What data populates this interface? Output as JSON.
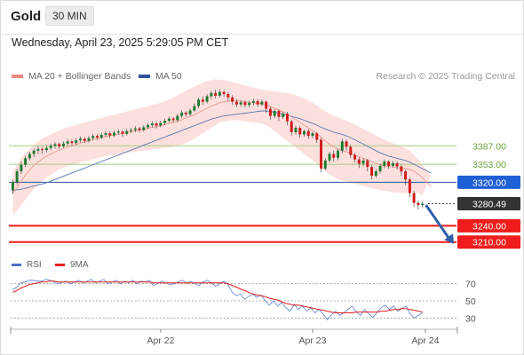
{
  "header": {
    "instrument": "Gold",
    "timeframe": "30 MIN",
    "datetime": "Wednesday, April 23, 2025 5:29:05 PM CET"
  },
  "legend": {
    "ma_bb_label": "MA 20 + Bollinger Bands",
    "ma_bb_color": "#f08a80",
    "ma50_label": "MA 50",
    "ma50_color": "#2f5597",
    "credit": "Research © 2025 Trading Central"
  },
  "rsi_legend": {
    "rsi_label": "RSI",
    "rsi_color": "#4a72c8",
    "ma9_label": "9MA",
    "ma9_color": "#e02020"
  },
  "chart_data": [
    {
      "type": "candlestick",
      "price_range": [
        3190,
        3500
      ],
      "x_ticks": [
        "Apr 22",
        "Apr 23",
        "Apr 24"
      ],
      "candles": [
        [
          3305,
          3320,
          3298,
          3325
        ],
        [
          3320,
          3340,
          3315,
          3345
        ],
        [
          3340,
          3352,
          3335,
          3358
        ],
        [
          3352,
          3364,
          3348,
          3368
        ],
        [
          3364,
          3372,
          3360,
          3376
        ],
        [
          3372,
          3378,
          3366,
          3382
        ],
        [
          3378,
          3381,
          3372,
          3386
        ],
        [
          3381,
          3379,
          3372,
          3385
        ],
        [
          3379,
          3383,
          3375,
          3388
        ],
        [
          3383,
          3387,
          3379,
          3391
        ],
        [
          3387,
          3390,
          3382,
          3394
        ],
        [
          3390,
          3386,
          3381,
          3393
        ],
        [
          3386,
          3391,
          3383,
          3395
        ],
        [
          3391,
          3395,
          3387,
          3399
        ],
        [
          3395,
          3392,
          3387,
          3398
        ],
        [
          3392,
          3397,
          3389,
          3401
        ],
        [
          3397,
          3400,
          3393,
          3404
        ],
        [
          3400,
          3396,
          3392,
          3403
        ],
        [
          3396,
          3401,
          3393,
          3405
        ],
        [
          3401,
          3405,
          3397,
          3409
        ],
        [
          3405,
          3402,
          3398,
          3408
        ],
        [
          3402,
          3407,
          3399,
          3411
        ],
        [
          3407,
          3410,
          3403,
          3414
        ],
        [
          3410,
          3406,
          3401,
          3413
        ],
        [
          3406,
          3411,
          3403,
          3415
        ],
        [
          3411,
          3413,
          3407,
          3417
        ],
        [
          3413,
          3409,
          3404,
          3416
        ],
        [
          3409,
          3414,
          3406,
          3418
        ],
        [
          3414,
          3416,
          3410,
          3420
        ],
        [
          3416,
          3419,
          3412,
          3423
        ],
        [
          3419,
          3416,
          3411,
          3422
        ],
        [
          3416,
          3421,
          3413,
          3425
        ],
        [
          3421,
          3425,
          3418,
          3429
        ],
        [
          3425,
          3428,
          3421,
          3432
        ],
        [
          3428,
          3424,
          3419,
          3431
        ],
        [
          3424,
          3429,
          3421,
          3433
        ],
        [
          3429,
          3433,
          3425,
          3437
        ],
        [
          3433,
          3437,
          3429,
          3441
        ],
        [
          3437,
          3434,
          3429,
          3440
        ],
        [
          3434,
          3442,
          3431,
          3446
        ],
        [
          3442,
          3448,
          3438,
          3452
        ],
        [
          3448,
          3445,
          3440,
          3451
        ],
        [
          3445,
          3452,
          3442,
          3456
        ],
        [
          3452,
          3460,
          3449,
          3465
        ],
        [
          3460,
          3472,
          3456,
          3476
        ],
        [
          3472,
          3468,
          3462,
          3478
        ],
        [
          3468,
          3478,
          3465,
          3482
        ],
        [
          3478,
          3484,
          3473,
          3488
        ],
        [
          3484,
          3479,
          3474,
          3490
        ],
        [
          3479,
          3486,
          3476,
          3491
        ],
        [
          3486,
          3482,
          3477,
          3489
        ],
        [
          3482,
          3476,
          3470,
          3486
        ],
        [
          3476,
          3468,
          3462,
          3480
        ],
        [
          3468,
          3463,
          3458,
          3473
        ],
        [
          3463,
          3467,
          3459,
          3471
        ],
        [
          3467,
          3462,
          3457,
          3471
        ],
        [
          3462,
          3466,
          3458,
          3470
        ],
        [
          3466,
          3469,
          3461,
          3473
        ],
        [
          3469,
          3463,
          3459,
          3473
        ],
        [
          3463,
          3468,
          3460,
          3472
        ],
        [
          3468,
          3455,
          3448,
          3471
        ],
        [
          3455,
          3442,
          3435,
          3459
        ],
        [
          3442,
          3451,
          3438,
          3455
        ],
        [
          3451,
          3440,
          3432,
          3454
        ],
        [
          3440,
          3446,
          3436,
          3450
        ],
        [
          3446,
          3432,
          3425,
          3449
        ],
        [
          3432,
          3412,
          3405,
          3435
        ],
        [
          3412,
          3420,
          3407,
          3424
        ],
        [
          3420,
          3408,
          3402,
          3423
        ],
        [
          3408,
          3414,
          3404,
          3417
        ],
        [
          3414,
          3405,
          3400,
          3418
        ],
        [
          3405,
          3410,
          3401,
          3413
        ],
        [
          3410,
          3398,
          3392,
          3412
        ],
        [
          3398,
          3345,
          3338,
          3402
        ],
        [
          3345,
          3360,
          3342,
          3364
        ],
        [
          3360,
          3372,
          3356,
          3376
        ],
        [
          3372,
          3365,
          3358,
          3378
        ],
        [
          3365,
          3378,
          3360,
          3382
        ],
        [
          3378,
          3395,
          3373,
          3400
        ],
        [
          3395,
          3385,
          3378,
          3399
        ],
        [
          3385,
          3370,
          3364,
          3389
        ],
        [
          3370,
          3362,
          3356,
          3374
        ],
        [
          3362,
          3354,
          3346,
          3366
        ],
        [
          3354,
          3360,
          3350,
          3364
        ],
        [
          3360,
          3348,
          3340,
          3363
        ],
        [
          3348,
          3332,
          3325,
          3352
        ],
        [
          3332,
          3340,
          3328,
          3344
        ],
        [
          3340,
          3350,
          3336,
          3354
        ],
        [
          3350,
          3358,
          3346,
          3362
        ],
        [
          3358,
          3350,
          3345,
          3361
        ],
        [
          3350,
          3355,
          3347,
          3359
        ],
        [
          3355,
          3349,
          3344,
          3358
        ],
        [
          3349,
          3340,
          3332,
          3352
        ],
        [
          3340,
          3325,
          3315,
          3343
        ],
        [
          3325,
          3300,
          3292,
          3329
        ],
        [
          3300,
          3282,
          3275,
          3304
        ],
        [
          3282,
          3278,
          3270,
          3286
        ],
        [
          3278,
          3280.49,
          3273,
          3284
        ]
      ],
      "ma20": [
        3300,
        3310,
        3322,
        3333,
        3343,
        3351,
        3357,
        3363,
        3368,
        3372,
        3376,
        3379,
        3382,
        3385,
        3387,
        3389,
        3392,
        3394,
        3396,
        3398,
        3400,
        3402,
        3404,
        3405,
        3407,
        3408,
        3410,
        3411,
        3413,
        3414,
        3416,
        3417,
        3419,
        3421,
        3422,
        3424,
        3426,
        3428,
        3430,
        3432,
        3435,
        3438,
        3441,
        3444,
        3448,
        3452,
        3456,
        3460,
        3463,
        3466,
        3468,
        3469,
        3470,
        3470,
        3469,
        3468,
        3467,
        3466,
        3465,
        3464,
        3462,
        3459,
        3456,
        3453,
        3449,
        3445,
        3440,
        3435,
        3430,
        3425,
        3420,
        3415,
        3410,
        3403,
        3396,
        3390,
        3385,
        3381,
        3378,
        3376,
        3373,
        3370,
        3367,
        3364,
        3361,
        3358,
        3355,
        3352,
        3350,
        3349,
        3348,
        3347,
        3346,
        3345,
        3343,
        3340,
        3335,
        3328,
        3320,
        3312
      ],
      "bb_upper": [
        3340,
        3352,
        3364,
        3374,
        3382,
        3389,
        3395,
        3400,
        3404,
        3408,
        3412,
        3415,
        3418,
        3421,
        3423,
        3425,
        3428,
        3430,
        3432,
        3434,
        3436,
        3438,
        3440,
        3442,
        3444,
        3446,
        3448,
        3450,
        3452,
        3454,
        3456,
        3458,
        3460,
        3462,
        3464,
        3466,
        3469,
        3472,
        3476,
        3480,
        3484,
        3488,
        3492,
        3496,
        3500,
        3503,
        3506,
        3508,
        3509,
        3509,
        3508,
        3506,
        3504,
        3502,
        3500,
        3498,
        3496,
        3494,
        3492,
        3490,
        3489,
        3488,
        3487,
        3486,
        3485,
        3484,
        3482,
        3480,
        3477,
        3474,
        3470,
        3466,
        3461,
        3455,
        3450,
        3446,
        3442,
        3439,
        3436,
        3433,
        3430,
        3426,
        3422,
        3418,
        3414,
        3410,
        3406,
        3402,
        3398,
        3395,
        3392,
        3389,
        3386,
        3383,
        3378,
        3370,
        3362,
        3352,
        3342,
        3332
      ],
      "bb_lower": [
        3260,
        3268,
        3278,
        3288,
        3298,
        3307,
        3314,
        3322,
        3328,
        3334,
        3339,
        3344,
        3347,
        3350,
        3352,
        3354,
        3356,
        3358,
        3360,
        3362,
        3364,
        3366,
        3368,
        3369,
        3370,
        3372,
        3373,
        3374,
        3375,
        3376,
        3377,
        3378,
        3379,
        3380,
        3381,
        3382,
        3383,
        3384,
        3385,
        3387,
        3389,
        3392,
        3396,
        3400,
        3405,
        3410,
        3415,
        3420,
        3425,
        3430,
        3432,
        3433,
        3434,
        3434,
        3433,
        3432,
        3431,
        3430,
        3429,
        3428,
        3425,
        3420,
        3414,
        3408,
        3402,
        3396,
        3390,
        3384,
        3378,
        3372,
        3366,
        3360,
        3354,
        3346,
        3340,
        3334,
        3330,
        3326,
        3323,
        3321,
        3319,
        3317,
        3315,
        3313,
        3311,
        3309,
        3307,
        3305,
        3304,
        3303,
        3302,
        3301,
        3300,
        3300,
        3300,
        3302,
        3300,
        3296,
        3292,
        3288
      ],
      "ma50": [
        3305,
        3306,
        3307,
        3309,
        3311,
        3313,
        3315,
        3317,
        3319,
        3322,
        3325,
        3328,
        3331,
        3334,
        3337,
        3340,
        3343,
        3346,
        3349,
        3352,
        3355,
        3358,
        3361,
        3364,
        3367,
        3370,
        3373,
        3376,
        3379,
        3382,
        3385,
        3388,
        3391,
        3394,
        3397,
        3400,
        3403,
        3406,
        3409,
        3412,
        3415,
        3418,
        3421,
        3424,
        3427,
        3430,
        3433,
        3436,
        3438,
        3440,
        3442,
        3443,
        3444,
        3445,
        3446,
        3447,
        3448,
        3449,
        3450,
        3451,
        3451,
        3450,
        3449,
        3447,
        3445,
        3443,
        3441,
        3439,
        3437,
        3434,
        3431,
        3428,
        3425,
        3421,
        3418,
        3415,
        3412,
        3410,
        3408,
        3405,
        3402,
        3398,
        3394,
        3390,
        3386,
        3382,
        3378,
        3374,
        3371,
        3368,
        3366,
        3364,
        3362,
        3360,
        3357,
        3353,
        3349,
        3345,
        3341,
        3337
      ],
      "levels": [
        {
          "value": 3387.0,
          "label": "3387.00",
          "kind": "resistance"
        },
        {
          "value": 3353.0,
          "label": "3353.00",
          "kind": "resistance"
        },
        {
          "value": 3320.0,
          "label": "3320.00",
          "kind": "pivot"
        },
        {
          "value": 3280.49,
          "label": "3280.49",
          "kind": "last"
        },
        {
          "value": 3240.0,
          "label": "3240.00",
          "kind": "support"
        },
        {
          "value": 3210.0,
          "label": "3210.00",
          "kind": "support"
        }
      ],
      "arrow": {
        "from": 3278,
        "to": 3210,
        "direction": "down"
      }
    },
    {
      "type": "line",
      "name": "RSI",
      "y_range": [
        20,
        80
      ],
      "y_ticks": [
        70,
        50,
        30
      ],
      "rsi": [
        63,
        66,
        71,
        72,
        74,
        74,
        73,
        73,
        75,
        74,
        72,
        70,
        72,
        73,
        70,
        72,
        74,
        71,
        73,
        75,
        71,
        73,
        75,
        70,
        72,
        74,
        70,
        73,
        71,
        74,
        70,
        73,
        72,
        74,
        68,
        70,
        73,
        71,
        69,
        70,
        72,
        74,
        71,
        73,
        70,
        68,
        72,
        74,
        71,
        67,
        70,
        73,
        69,
        60,
        56,
        58,
        52,
        55,
        58,
        54,
        57,
        50,
        45,
        50,
        44,
        48,
        42,
        38,
        46,
        40,
        44,
        38,
        42,
        36,
        40,
        35,
        28,
        34,
        38,
        33,
        36,
        40,
        44,
        37,
        33,
        40,
        35,
        31,
        36,
        42,
        45,
        40,
        44,
        38,
        41,
        44,
        35,
        30,
        33,
        36
      ],
      "ma9": [
        60,
        62,
        65,
        67,
        69,
        70,
        71,
        72,
        72,
        73,
        73,
        72,
        72,
        72,
        72,
        72,
        72,
        72,
        72,
        72,
        72,
        72,
        72,
        72,
        72,
        72,
        72,
        72,
        72,
        72,
        72,
        72,
        72,
        72,
        71,
        71,
        71,
        71,
        71,
        71,
        71,
        71,
        71,
        71,
        71,
        71,
        71,
        71,
        71,
        71,
        71,
        71,
        70,
        68,
        66,
        64,
        62,
        60,
        58,
        57,
        56,
        55,
        53,
        52,
        51,
        49,
        47,
        46,
        45,
        45,
        44,
        43,
        42,
        41,
        40,
        39,
        38,
        37,
        36,
        36,
        36,
        36,
        36,
        37,
        37,
        37,
        37,
        37,
        37,
        38,
        38,
        39,
        40,
        40,
        41,
        41,
        40,
        39,
        38,
        37
      ]
    }
  ]
}
